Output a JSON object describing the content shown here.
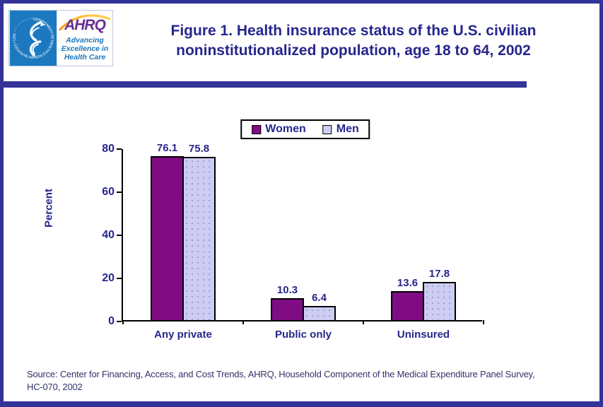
{
  "colors": {
    "frame": "#333399",
    "text_navy": "#26268C",
    "women_bar": "#830C87",
    "men_bar": "#CDCDF4",
    "men_dots": "#9A9AD0",
    "hhs_blue": "#1C79C0",
    "ahrq_purple": "#662D91",
    "arc_orange": "#F7941D",
    "arc_yellow": "#FFD34D"
  },
  "logo": {
    "seal_ring_text": "DEPARTMENT OF HEALTH & HUMAN SERVICES • USA",
    "wordmark": "AHRQ",
    "tagline": [
      "Advancing",
      "Excellence in",
      "Health Care"
    ]
  },
  "title": {
    "lines": [
      "Figure 1. Health insurance status of the U.S. civilian",
      "noninstitutionalized population, age 18 to 64, 2002"
    ]
  },
  "chart_data": {
    "type": "bar",
    "categories": [
      "Any private",
      "Public only",
      "Uninsured"
    ],
    "series": [
      {
        "name": "Women",
        "color": "#830C87",
        "values": [
          76.1,
          10.3,
          13.6
        ]
      },
      {
        "name": "Men",
        "color": "#CDCDF4",
        "values": [
          75.8,
          6.4,
          17.8
        ]
      }
    ],
    "ylabel": "Percent",
    "ylim": [
      0,
      80
    ],
    "yticks": [
      0,
      20,
      40,
      60,
      80
    ],
    "grid": false,
    "value_labels": true,
    "legend_position": "top-center"
  },
  "source": {
    "lines": [
      "Source: Center for Financing, Access, and Cost Trends, AHRQ, Household Component of the Medical Expenditure Panel Survey,",
      "HC-070, 2002"
    ]
  }
}
